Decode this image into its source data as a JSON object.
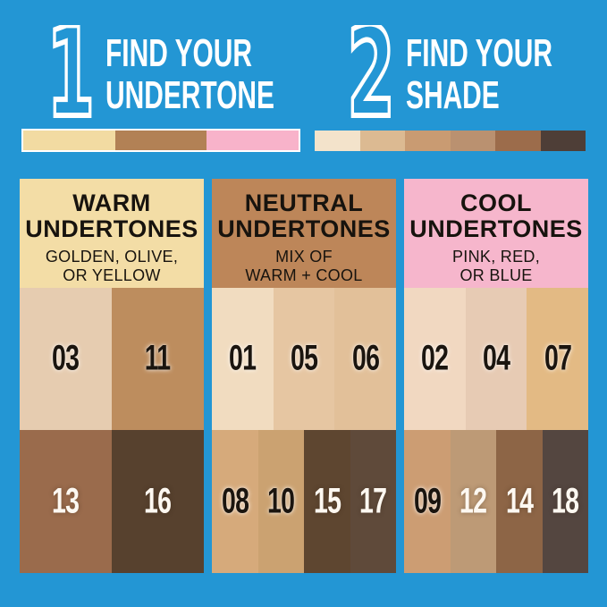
{
  "canvas": {
    "background": "#2396d4"
  },
  "steps": [
    {
      "number": "1",
      "heading_line1": "FIND YOUR",
      "heading_line2": "UNDERTONE",
      "strip": [
        {
          "name": "warm",
          "color": "#f2dba2"
        },
        {
          "name": "neutral",
          "color": "#b28155"
        },
        {
          "name": "cool",
          "color": "#f8b3ca"
        }
      ]
    },
    {
      "number": "2",
      "heading_line1": "FIND YOUR",
      "heading_line2": "SHADE",
      "strip": [
        {
          "name": "shade-1",
          "color": "#f3e3cb"
        },
        {
          "name": "shade-2",
          "color": "#dcba92"
        },
        {
          "name": "shade-3",
          "color": "#c99b72"
        },
        {
          "name": "shade-4",
          "color": "#ba9170"
        },
        {
          "name": "shade-5",
          "color": "#9c6c4b"
        },
        {
          "name": "shade-6",
          "color": "#4e3e37"
        }
      ]
    }
  ],
  "columns": [
    {
      "title_line1": "WARM",
      "title_line2": "UNDERTONES",
      "subtitle_line1": "GOLDEN, OLIVE,",
      "subtitle_line2": "OR YELLOW",
      "header_bg": "#f3dda6",
      "light_shades": [
        {
          "label": "03",
          "color": "#e6ccb0",
          "label_color": "#1b150f"
        },
        {
          "label": "11",
          "color": "#bd8d5e",
          "label_color": "#1b150f"
        }
      ],
      "dark_shades": [
        {
          "label": "13",
          "color": "#9a6b4c",
          "label_color": "#fdf8f1"
        },
        {
          "label": "16",
          "color": "#57412e",
          "label_color": "#fdf8f1"
        }
      ]
    },
    {
      "title_line1": "NEUTRAL",
      "title_line2": "UNDERTONES",
      "subtitle_line1": "MIX OF",
      "subtitle_line2": "WARM + COOL",
      "header_bg": "#bd8659",
      "light_shades": [
        {
          "label": "01",
          "color": "#f1dcc0",
          "label_color": "#1b150f"
        },
        {
          "label": "05",
          "color": "#e6c6a2",
          "label_color": "#1b150f"
        },
        {
          "label": "06",
          "color": "#e2c099",
          "label_color": "#1b150f"
        }
      ],
      "dark_shades": [
        {
          "label": "08",
          "color": "#d6aa7b",
          "label_color": "#1b150f"
        },
        {
          "label": "10",
          "color": "#cba271",
          "label_color": "#1b150f"
        },
        {
          "label": "15",
          "color": "#5e4630",
          "label_color": "#fdf8f1"
        },
        {
          "label": "17",
          "color": "#5f4a3a",
          "label_color": "#fdf8f1"
        }
      ]
    },
    {
      "title_line1": "COOL",
      "title_line2": "UNDERTONES",
      "subtitle_line1": "PINK, RED,",
      "subtitle_line2": "OR BLUE",
      "header_bg": "#f6b6cc",
      "light_shades": [
        {
          "label": "02",
          "color": "#f1d8c1",
          "label_color": "#1b150f"
        },
        {
          "label": "04",
          "color": "#e7cbb4",
          "label_color": "#1b150f"
        },
        {
          "label": "07",
          "color": "#e3ba84",
          "label_color": "#1b150f"
        }
      ],
      "dark_shades": [
        {
          "label": "09",
          "color": "#cc9d73",
          "label_color": "#1b150f"
        },
        {
          "label": "12",
          "color": "#bd9a76",
          "label_color": "#fdf8f1"
        },
        {
          "label": "14",
          "color": "#8d6546",
          "label_color": "#fdf8f1"
        },
        {
          "label": "18",
          "color": "#544640",
          "label_color": "#fdf8f1"
        }
      ]
    }
  ]
}
